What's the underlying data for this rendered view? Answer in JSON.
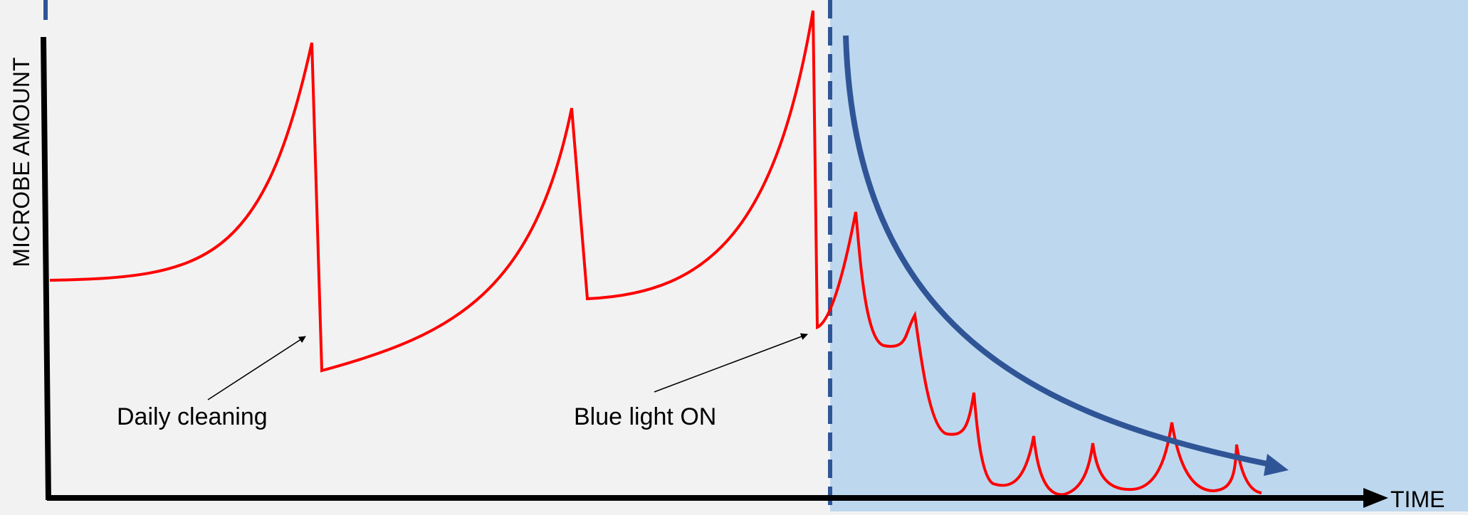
{
  "labels": {
    "y_axis": "MICROBE AMOUNT",
    "x_axis": "TIME",
    "annotation_cleaning": "Daily cleaning",
    "annotation_blue_light": "Blue light ON"
  },
  "colors": {
    "background": "#f2f2f2",
    "blue_light_region": "#bdd7ee",
    "microbe_curve": "#ff0000",
    "decay_trend_arrow": "#2f5597",
    "divider": "#2f5597",
    "axes": "#000000"
  }
}
